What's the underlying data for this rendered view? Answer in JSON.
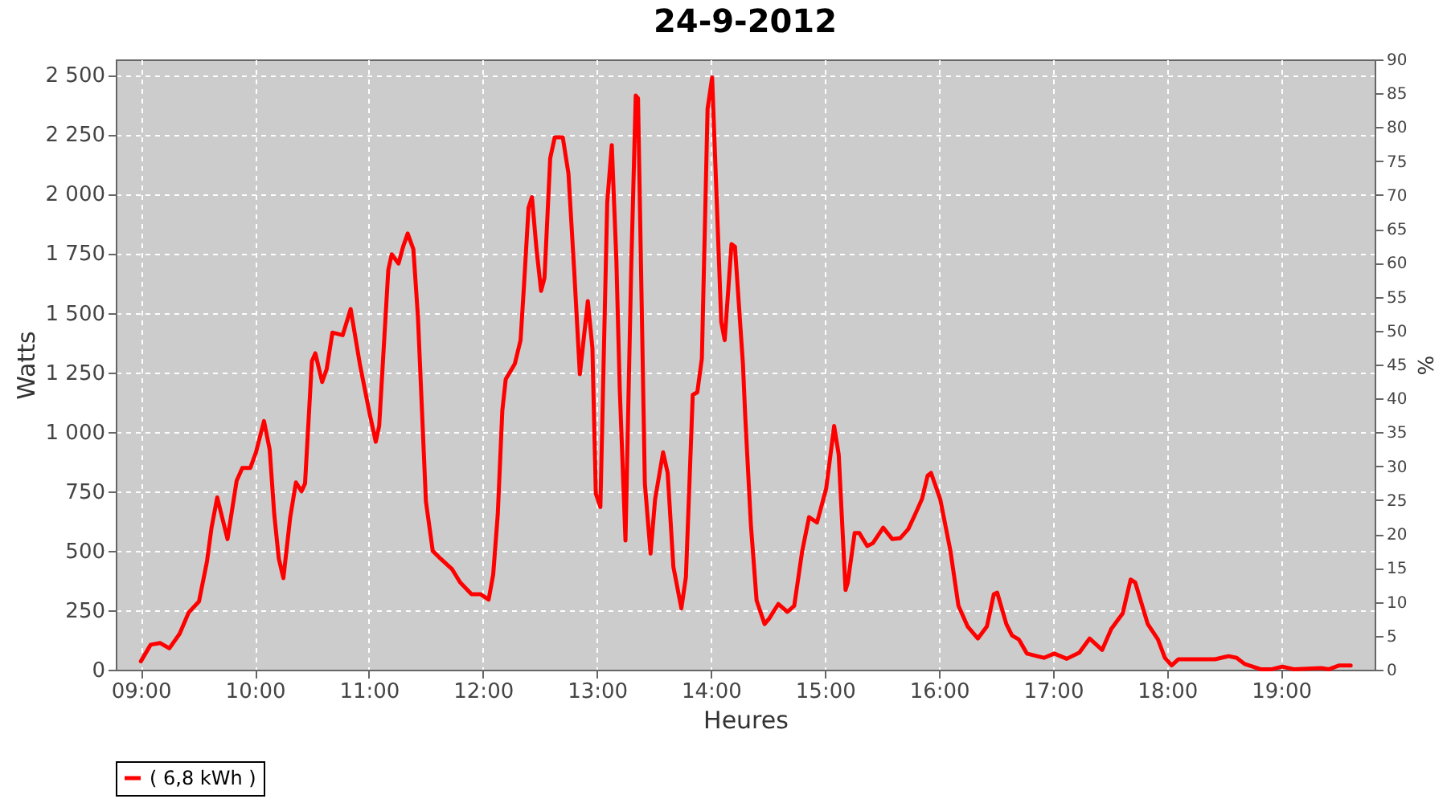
{
  "chart_data": {
    "type": "line",
    "title": "24-9-2012",
    "xlabel": "Heures",
    "ylabel": "Watts",
    "y2label": "%",
    "grid": true,
    "legend": "bottom",
    "marker": "none",
    "line_style": "solid",
    "xlim": [
      8.78,
      19.82
    ],
    "xticks": [
      {
        "value": 9,
        "label": "09:00"
      },
      {
        "value": 10,
        "label": "10:00"
      },
      {
        "value": 11,
        "label": "11:00"
      },
      {
        "value": 12,
        "label": "12:00"
      },
      {
        "value": 13,
        "label": "13:00"
      },
      {
        "value": 14,
        "label": "14:00"
      },
      {
        "value": 15,
        "label": "15:00"
      },
      {
        "value": 16,
        "label": "16:00"
      },
      {
        "value": 17,
        "label": "17:00"
      },
      {
        "value": 18,
        "label": "18:00"
      },
      {
        "value": 19,
        "label": "19:00"
      }
    ],
    "ylim": [
      0,
      2565
    ],
    "yticks": [
      0,
      250,
      500,
      750,
      {
        "value": 1000,
        "label": "1 000"
      },
      {
        "value": 1250,
        "label": "1 250"
      },
      {
        "value": 1500,
        "label": "1 500"
      },
      {
        "value": 1750,
        "label": "1 750"
      },
      {
        "value": 2000,
        "label": "2 000"
      },
      {
        "value": 2250,
        "label": "2 250"
      },
      {
        "value": 2500,
        "label": "2 500"
      }
    ],
    "y2lim": [
      0,
      90
    ],
    "y2ticks": [
      0,
      5,
      10,
      15,
      20,
      25,
      30,
      35,
      40,
      45,
      50,
      55,
      60,
      65,
      70,
      75,
      80,
      85,
      90
    ],
    "series": [
      {
        "name": "( 6,8 kWh )",
        "color": "#ff0000",
        "x": [
          9.0,
          9.086,
          9.17,
          9.25,
          9.34,
          9.42,
          9.51,
          9.58,
          9.62,
          9.67,
          9.76,
          9.84,
          9.89,
          9.96,
          10.01,
          10.08,
          10.13,
          10.17,
          10.21,
          10.25,
          10.31,
          10.36,
          10.41,
          10.44,
          10.5,
          10.53,
          10.59,
          10.63,
          10.68,
          10.77,
          10.84,
          10.92,
          11.01,
          11.06,
          11.09,
          11.17,
          11.2,
          11.26,
          11.3,
          11.34,
          11.39,
          11.43,
          11.5,
          11.56,
          11.63,
          11.73,
          11.8,
          11.9,
          11.98,
          12.05,
          12.09,
          12.13,
          12.17,
          12.2,
          12.28,
          12.33,
          12.36,
          12.4,
          12.43,
          12.47,
          12.51,
          12.54,
          12.59,
          12.63,
          12.7,
          12.75,
          12.8,
          12.85,
          12.92,
          12.96,
          12.99,
          13.03,
          13.09,
          13.13,
          13.17,
          13.2,
          13.25,
          13.3,
          13.34,
          13.36,
          13.42,
          13.47,
          13.51,
          13.58,
          13.62,
          13.67,
          13.74,
          13.78,
          13.84,
          13.88,
          13.92,
          13.97,
          14.01,
          14.09,
          14.12,
          14.18,
          14.21,
          14.28,
          14.3,
          14.35,
          14.4,
          14.47,
          14.51,
          14.59,
          14.67,
          14.73,
          14.8,
          14.86,
          14.93,
          15.01,
          15.08,
          15.12,
          15.18,
          15.2,
          15.26,
          15.3,
          15.37,
          15.42,
          15.51,
          15.59,
          15.66,
          15.73,
          15.8,
          15.85,
          15.9,
          15.93,
          16.01,
          16.1,
          16.17,
          16.25,
          16.34,
          16.42,
          16.48,
          16.51,
          16.59,
          16.64,
          16.7,
          16.77,
          16.86,
          16.92,
          17.01,
          17.12,
          17.23,
          17.32,
          17.43,
          17.51,
          17.61,
          17.68,
          17.72,
          17.83,
          17.92,
          17.98,
          18.04,
          18.1,
          18.25,
          18.42,
          18.54,
          18.61,
          18.68,
          18.82,
          18.92,
          19.01,
          19.11,
          19.35,
          19.42,
          19.51,
          19.61
        ],
        "values": [
          35,
          105,
          112,
          90,
          151,
          241,
          287,
          455,
          597,
          724,
          549,
          794,
          848,
          848,
          914,
          1045,
          925,
          652,
          466,
          385,
          641,
          787,
          750,
          783,
          1297,
          1330,
          1209,
          1264,
          1417,
          1406,
          1516,
          1286,
          1068,
          958,
          1024,
          1680,
          1746,
          1707,
          1778,
          1833,
          1767,
          1483,
          707,
          499,
          466,
          422,
          367,
          317,
          317,
          295,
          400,
          652,
          1089,
          1221,
          1286,
          1385,
          1614,
          1942,
          1986,
          1767,
          1592,
          1647,
          2150,
          2238,
          2238,
          2085,
          1680,
          1242,
          1549,
          1352,
          740,
          684,
          1964,
          2205,
          1724,
          1177,
          543,
          1680,
          2413,
          2402,
          783,
          488,
          717,
          914,
          827,
          433,
          258,
          389,
          1155,
          1166,
          1308,
          2358,
          2489,
          1461,
          1385,
          1789,
          1778,
          1286,
          1068,
          608,
          291,
          192,
          215,
          276,
          243,
          269,
          499,
          641,
          619,
          761,
          1024,
          904,
          335,
          367,
          575,
          575,
          520,
          532,
          597,
          549,
          553,
          591,
          663,
          717,
          816,
          827,
          717,
          499,
          269,
          182,
          131,
          182,
          317,
          324,
          192,
          144,
          127,
          68,
          57,
          50,
          68,
          46,
          72,
          131,
          83,
          171,
          236,
          379,
          367,
          192,
          127,
          50,
          18,
          44,
          44,
          44,
          57,
          50,
          24,
          2,
          2,
          13,
          2,
          7,
          2,
          18,
          18
        ]
      }
    ]
  }
}
